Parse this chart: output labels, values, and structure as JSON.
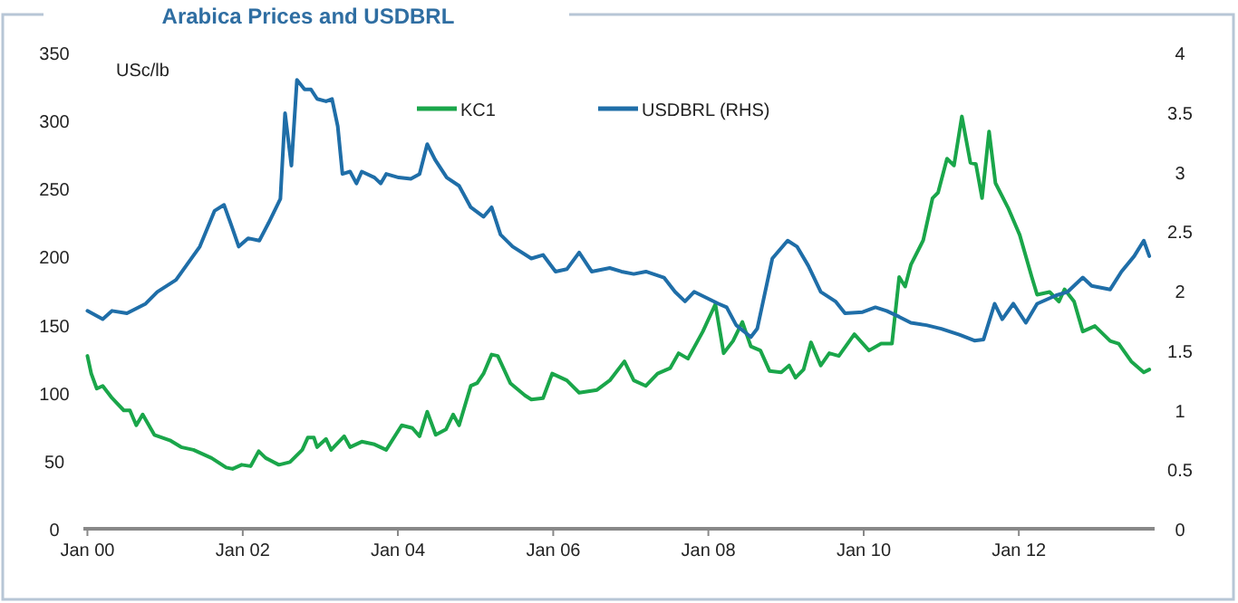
{
  "chart_data": {
    "type": "line",
    "title": "Arabica Prices and USDBRL",
    "ylabel": "USc/lb",
    "legend": "top",
    "grid": false,
    "marker": "none",
    "line_style": "solid",
    "xlim": [
      "1999-12-13",
      "2013-10-01"
    ],
    "xticks": [
      {
        "value": "2000-01-01",
        "label": "Jan 00"
      },
      {
        "value": "2002-01-01",
        "label": "Jan 02"
      },
      {
        "value": "2004-01-01",
        "label": "Jan 04"
      },
      {
        "value": "2006-01-01",
        "label": "Jan 06"
      },
      {
        "value": "2008-01-01",
        "label": "Jan 08"
      },
      {
        "value": "2010-01-01",
        "label": "Jan 10"
      },
      {
        "value": "2012-01-01",
        "label": "Jan 12"
      }
    ],
    "ylim": [
      0,
      350
    ],
    "yticks": [
      0,
      50,
      100,
      150,
      200,
      250,
      300,
      350
    ],
    "y2lim": [
      0,
      4
    ],
    "y2ticks": [
      0,
      0.5,
      1,
      1.5,
      2,
      2.5,
      3,
      3.5,
      4
    ],
    "series": [
      {
        "name": "KC1",
        "color": "#1aa64a",
        "x": [
          "2000-01-01",
          "2000-01-19",
          "2000-02-14",
          "2000-03-13",
          "2000-04-26",
          "2000-06-20",
          "2000-07-19",
          "2000-08-18",
          "2000-09-17",
          "2000-11-11",
          "2001-01-23",
          "2001-03-17",
          "2001-05-14",
          "2001-08-07",
          "2001-10-15",
          "2001-11-14",
          "2001-12-27",
          "2002-02-07",
          "2002-03-17",
          "2002-04-19",
          "2002-06-20",
          "2002-08-11",
          "2002-10-08",
          "2002-11-03",
          "2002-12-02",
          "2002-12-17",
          "2003-01-28",
          "2003-02-21",
          "2003-04-23",
          "2003-05-21",
          "2003-07-15",
          "2003-09-13",
          "2003-11-07",
          "2004-01-19",
          "2004-03-09",
          "2004-04-12",
          "2004-05-18",
          "2004-06-27",
          "2004-08-14",
          "2004-09-17",
          "2004-10-15",
          "2004-12-09",
          "2005-01-08",
          "2005-02-07",
          "2005-03-17",
          "2005-04-15",
          "2005-06-13",
          "2005-08-21",
          "2005-09-20",
          "2005-11-14",
          "2005-12-27",
          "2006-03-06",
          "2006-05-03",
          "2006-07-26",
          "2006-09-24",
          "2006-12-02",
          "2007-01-15",
          "2007-03-13",
          "2007-05-07",
          "2007-07-05",
          "2007-08-14",
          "2007-09-27",
          "2007-12-06",
          "2008-02-03",
          "2008-03-13",
          "2008-04-26",
          "2008-06-09",
          "2008-07-19",
          "2008-09-02",
          "2008-10-15",
          "2008-12-09",
          "2009-01-15",
          "2009-02-14",
          "2009-03-24",
          "2009-04-28",
          "2009-06-13",
          "2009-07-23",
          "2009-09-06",
          "2009-11-18",
          "2010-01-26",
          "2010-03-24",
          "2010-05-14",
          "2010-06-17",
          "2010-07-15",
          "2010-08-11",
          "2010-10-08",
          "2010-11-21",
          "2010-12-17",
          "2011-01-28",
          "2011-03-02",
          "2011-04-08",
          "2011-05-18",
          "2011-06-13",
          "2011-07-12",
          "2011-08-14",
          "2011-09-13",
          "2011-11-11",
          "2012-01-05",
          "2012-03-02",
          "2012-03-27",
          "2012-05-25",
          "2012-07-08",
          "2012-08-03",
          "2012-09-17",
          "2012-10-28",
          "2012-12-24",
          "2013-03-06",
          "2013-04-15",
          "2013-06-13",
          "2013-08-11",
          "2013-09-06"
        ],
        "values": [
          127,
          114,
          103,
          105,
          96,
          87,
          87,
          76,
          84,
          69,
          65,
          60,
          58,
          52,
          45,
          44,
          47,
          46,
          57,
          52,
          47,
          49,
          58,
          67,
          67,
          60,
          66,
          58,
          68,
          60,
          64,
          62,
          58,
          76,
          74,
          68,
          86,
          69,
          73,
          84,
          76,
          105,
          107,
          114,
          128,
          127,
          107,
          98,
          95,
          96,
          114,
          109,
          100,
          102,
          109,
          123,
          109,
          105,
          114,
          118,
          129,
          125,
          145,
          165,
          129,
          138,
          152,
          134,
          131,
          116,
          115,
          120,
          111,
          117,
          137,
          120,
          129,
          127,
          143,
          131,
          136,
          136,
          185,
          178,
          194,
          212,
          243,
          247,
          272,
          267,
          303,
          269,
          268,
          243,
          292,
          254,
          236,
          216,
          185,
          172,
          174,
          167,
          176,
          167,
          145,
          149,
          138,
          136,
          123,
          115,
          117
        ]
      },
      {
        "name": "USDBRL (RHS)",
        "color": "#1f6ea8",
        "axis": "y2",
        "x": [
          "2000-01-01",
          "2000-03-13",
          "2000-04-26",
          "2000-07-05",
          "2000-10-01",
          "2000-11-25",
          "2001-02-21",
          "2001-06-13",
          "2001-08-21",
          "2001-10-05",
          "2001-11-14",
          "2001-12-13",
          "2002-01-26",
          "2002-03-20",
          "2002-05-03",
          "2002-06-27",
          "2002-07-19",
          "2002-08-18",
          "2002-09-13",
          "2002-10-19",
          "2002-11-18",
          "2002-12-17",
          "2003-01-28",
          "2003-02-25",
          "2003-03-24",
          "2003-04-15",
          "2003-05-21",
          "2003-06-20",
          "2003-07-15",
          "2003-09-13",
          "2003-10-12",
          "2003-11-07",
          "2004-01-05",
          "2004-03-02",
          "2004-04-12",
          "2004-05-18",
          "2004-06-24",
          "2004-08-18",
          "2004-10-15",
          "2004-12-09",
          "2005-02-07",
          "2005-03-17",
          "2005-04-28",
          "2005-06-24",
          "2005-09-20",
          "2005-11-14",
          "2006-01-12",
          "2006-03-06",
          "2006-05-03",
          "2006-07-01",
          "2006-09-24",
          "2006-11-18",
          "2007-01-15",
          "2007-03-13",
          "2007-06-06",
          "2007-07-28",
          "2007-09-13",
          "2007-10-26",
          "2008-02-18",
          "2008-03-27",
          "2008-05-11",
          "2008-07-19",
          "2008-08-18",
          "2008-10-28",
          "2009-01-08",
          "2009-02-21",
          "2009-04-15",
          "2009-06-13",
          "2009-08-21",
          "2009-10-05",
          "2009-12-27",
          "2010-02-25",
          "2010-04-19",
          "2010-06-17",
          "2010-08-11",
          "2010-10-23",
          "2011-01-01",
          "2011-03-27",
          "2011-06-06",
          "2011-07-19",
          "2011-09-09",
          "2011-10-15",
          "2011-12-06",
          "2012-02-03",
          "2012-03-27",
          "2012-06-24",
          "2012-08-18",
          "2012-10-28",
          "2012-12-09",
          "2013-03-06",
          "2013-04-28",
          "2013-06-27",
          "2013-08-11",
          "2013-09-06"
        ],
        "values": [
          1.83,
          1.76,
          1.83,
          1.81,
          1.89,
          1.99,
          2.09,
          2.37,
          2.67,
          2.72,
          2.52,
          2.37,
          2.44,
          2.42,
          2.57,
          2.77,
          3.49,
          3.05,
          3.77,
          3.69,
          3.69,
          3.61,
          3.59,
          3.61,
          3.38,
          2.98,
          3.0,
          2.9,
          3.0,
          2.95,
          2.9,
          2.98,
          2.95,
          2.94,
          2.98,
          3.23,
          3.1,
          2.95,
          2.88,
          2.7,
          2.62,
          2.7,
          2.47,
          2.37,
          2.27,
          2.3,
          2.16,
          2.18,
          2.32,
          2.16,
          2.19,
          2.16,
          2.14,
          2.16,
          2.11,
          1.99,
          1.91,
          1.99,
          1.89,
          1.86,
          1.71,
          1.61,
          1.68,
          2.27,
          2.42,
          2.37,
          2.21,
          1.99,
          1.91,
          1.81,
          1.82,
          1.86,
          1.83,
          1.78,
          1.73,
          1.71,
          1.68,
          1.63,
          1.58,
          1.59,
          1.89,
          1.76,
          1.89,
          1.73,
          1.89,
          1.96,
          1.99,
          2.11,
          2.04,
          2.01,
          2.16,
          2.29,
          2.42,
          2.29
        ]
      }
    ]
  }
}
